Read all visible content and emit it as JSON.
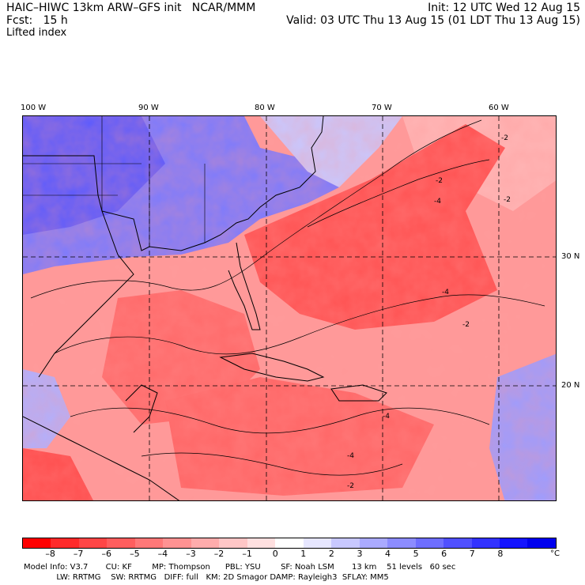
{
  "header": {
    "line1_left": "HAIC–HIWC 13km ARW–GFS init   NCAR/MMM",
    "line1_right": "Init: 12 UTC Wed 12 Aug 15",
    "line2_left": "Fcst:   15 h",
    "line2_right": "Valid: 03 UTC Thu 13 Aug 15 (01 LDT Thu 13 Aug 15)",
    "field": "Lifted index"
  },
  "map": {
    "lon_labels": [
      "100 W",
      "90 W",
      "80 W",
      "70 W",
      "60 W"
    ],
    "lat_labels": [
      "30 N",
      "20 N"
    ],
    "contour_labels": [
      "-2",
      "-4",
      "-4",
      "-2",
      "-2",
      "-4",
      "-2",
      "-4",
      "-2"
    ]
  },
  "colorbar": {
    "colors": [
      "#ff0000",
      "#ff2a2a",
      "#ff4646",
      "#ff5e5e",
      "#ff7878",
      "#ff9292",
      "#ffacac",
      "#ffc6c6",
      "#ffe0e0",
      "#ffffff",
      "#e6e6ff",
      "#c8c8ff",
      "#aaaaff",
      "#8c8cff",
      "#6e6eff",
      "#5050ff",
      "#3232ff",
      "#1414ff",
      "#0000ee"
    ],
    "ticks": [
      "–8",
      "–7",
      "–6",
      "–5",
      "–4",
      "–3",
      "–2",
      "–1",
      "0",
      "1",
      "2",
      "3",
      "4",
      "5",
      "6",
      "7",
      "8"
    ],
    "unit": "°C"
  },
  "model_info": {
    "line1": "Model Info: V3.7       CU: KF        MP: Thompson      PBL: YSU        SF: Noah LSM       13 km    51 levels   60 sec",
    "line2": "             LW: RRTMG    SW: RRTMG   DIFF: full   KM: 2D Smagor DAMP: Rayleigh3  SFLAY: MM5"
  }
}
